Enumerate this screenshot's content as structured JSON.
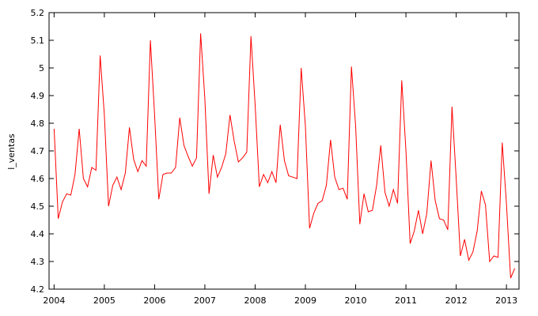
{
  "chart_data": {
    "type": "line",
    "title": "",
    "xlabel": "",
    "ylabel": "l_ventas",
    "xlim": [
      2003.9,
      2013.25
    ],
    "ylim": [
      4.2,
      5.2
    ],
    "grid": false,
    "line_color": "#ff0000",
    "x_ticks": [
      2004,
      2005,
      2006,
      2007,
      2008,
      2009,
      2010,
      2011,
      2012,
      2013
    ],
    "x_tick_labels": [
      "2004",
      "2005",
      "2006",
      "2007",
      "2008",
      "2009",
      "2010",
      "2011",
      "2012",
      "2013"
    ],
    "y_ticks": [
      4.2,
      4.3,
      4.4,
      4.5,
      4.6,
      4.7,
      4.8,
      4.9,
      5.0,
      5.1,
      5.2
    ],
    "y_tick_labels": [
      "4.2",
      "4.3",
      "4.4",
      "4.5",
      "4.6",
      "4.7",
      "4.8",
      "4.9",
      "5",
      "5.1",
      "5.2"
    ],
    "series": [
      {
        "x": [
          "2004-01",
          "2004-02",
          "2004-03",
          "2004-04",
          "2004-05",
          "2004-06",
          "2004-07",
          "2004-08",
          "2004-09",
          "2004-10",
          "2004-11",
          "2004-12",
          "2005-01",
          "2005-02",
          "2005-03",
          "2005-04",
          "2005-05",
          "2005-06",
          "2005-07",
          "2005-08",
          "2005-09",
          "2005-10",
          "2005-11",
          "2005-12",
          "2006-01",
          "2006-02",
          "2006-03",
          "2006-04",
          "2006-05",
          "2006-06",
          "2006-07",
          "2006-08",
          "2006-09",
          "2006-10",
          "2006-11",
          "2006-12",
          "2007-01",
          "2007-02",
          "2007-03",
          "2007-04",
          "2007-05",
          "2007-06",
          "2007-07",
          "2007-08",
          "2007-09",
          "2007-10",
          "2007-11",
          "2007-12",
          "2008-01",
          "2008-02",
          "2008-03",
          "2008-04",
          "2008-05",
          "2008-06",
          "2008-07",
          "2008-08",
          "2008-09",
          "2008-10",
          "2008-11",
          "2008-12",
          "2009-01",
          "2009-02",
          "2009-03",
          "2009-04",
          "2009-05",
          "2009-06",
          "2009-07",
          "2009-08",
          "2009-09",
          "2009-10",
          "2009-11",
          "2009-12",
          "2010-01",
          "2010-02",
          "2010-03",
          "2010-04",
          "2010-05",
          "2010-06",
          "2010-07",
          "2010-08",
          "2010-09",
          "2010-10",
          "2010-11",
          "2010-12",
          "2011-01",
          "2011-02",
          "2011-03",
          "2011-04",
          "2011-05",
          "2011-06",
          "2011-07",
          "2011-08",
          "2011-09",
          "2011-10",
          "2011-11",
          "2011-12",
          "2012-01",
          "2012-02",
          "2012-03",
          "2012-04",
          "2012-05",
          "2012-06",
          "2012-07",
          "2012-08",
          "2012-09",
          "2012-10",
          "2012-11",
          "2012-12",
          "2013-01",
          "2013-02",
          "2013-03"
        ],
        "values": [
          4.78,
          4.455,
          4.515,
          4.545,
          4.54,
          4.615,
          4.78,
          4.6,
          4.57,
          4.64,
          4.63,
          5.045,
          4.83,
          4.5,
          4.575,
          4.605,
          4.56,
          4.62,
          4.785,
          4.67,
          4.625,
          4.665,
          4.645,
          5.1,
          4.83,
          4.525,
          4.615,
          4.62,
          4.62,
          4.64,
          4.82,
          4.72,
          4.68,
          4.645,
          4.675,
          5.125,
          4.89,
          4.545,
          4.685,
          4.605,
          4.64,
          4.69,
          4.83,
          4.735,
          4.66,
          4.675,
          4.695,
          5.115,
          4.865,
          4.57,
          4.615,
          4.585,
          4.625,
          4.585,
          4.795,
          4.665,
          4.61,
          4.605,
          4.6,
          5.0,
          4.79,
          4.42,
          4.475,
          4.51,
          4.52,
          4.575,
          4.74,
          4.605,
          4.56,
          4.565,
          4.525,
          5.005,
          4.79,
          4.435,
          4.545,
          4.48,
          4.485,
          4.575,
          4.72,
          4.55,
          4.5,
          4.56,
          4.51,
          4.955,
          4.7,
          4.365,
          4.41,
          4.485,
          4.4,
          4.475,
          4.665,
          4.52,
          4.455,
          4.45,
          4.415,
          4.86,
          4.6,
          4.32,
          4.38,
          4.305,
          4.335,
          4.41,
          4.555,
          4.505,
          4.3,
          4.32,
          4.315,
          4.73,
          4.51,
          4.24,
          4.275
        ]
      }
    ]
  }
}
